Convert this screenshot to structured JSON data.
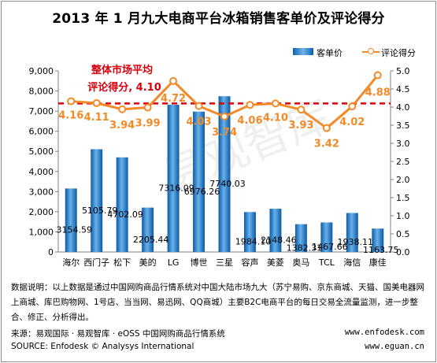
{
  "title": "2013 年 1 月九大电商平台冰箱销售客单价及评论得分",
  "legend": {
    "bar_label": "客单价",
    "line_label": "评论得分"
  },
  "average_annotation": {
    "line1": "整体市场平均",
    "line2": "评论得分, 4.10"
  },
  "watermark": "易观智库",
  "notes": "数据说明：以上数据是通过中国网购商品行情系统对中国大陆市场九大（苏宁易购、京东商城、天猫、国美电器网上商城、库巴购物网、1号店、当当网、易迅网、QQ商城）主要B2C电商平台的每日交易全流量监测，进一步整合、修正、分析得出。",
  "source_cn": "来源：易观国际 · 易观智库 · eOSS 中国网购商品行情系统",
  "source_en": "SOURCE: Enfodesk © Analysys International",
  "url1": "www.enfodesk.com",
  "url2": "www.eguan.cn",
  "colors": {
    "bar": "#2f86d6",
    "line": "#f28a27",
    "avg_line": "#d9000d",
    "score_text": "#f28a27",
    "avg_text": "#d9000d"
  },
  "chart_data": {
    "type": "bar",
    "title": "2013 年 1 月九大电商平台冰箱销售客单价及评论得分",
    "categories": [
      "海尔",
      "西门子",
      "松下",
      "美的",
      "LG",
      "博世",
      "三星",
      "容声",
      "美菱",
      "奥马",
      "TCL",
      "海信",
      "康佳"
    ],
    "series": [
      {
        "name": "客单价",
        "type": "bar",
        "axis": "left",
        "values": [
          3154.59,
          5105.79,
          4702.09,
          2205.44,
          7316.09,
          6976.26,
          7740.03,
          1984.1,
          2148.46,
          1382.31,
          1467.66,
          1938.11,
          1163.75
        ],
        "labels": [
          "3154.59",
          "5105.79",
          "4702.09",
          "2205.44",
          "7316.09",
          "6976.26",
          "7740.03",
          "1984.10",
          "2148.46",
          "1382.31",
          "1467.66",
          "1938.11",
          "1163.75"
        ]
      },
      {
        "name": "评论得分",
        "type": "line",
        "axis": "right",
        "values": [
          4.16,
          4.11,
          3.94,
          3.99,
          4.72,
          4.03,
          3.74,
          4.06,
          4.1,
          3.93,
          3.42,
          4.02,
          4.88
        ],
        "labels": [
          "4.16",
          "4.11",
          "3.94",
          "3.99",
          "4.72",
          "4.03",
          "3.74",
          "4.06",
          "4.10",
          "3.93",
          "3.42",
          "4.02",
          "4.88"
        ]
      }
    ],
    "reference_line": {
      "axis": "right",
      "value": 4.1
    },
    "y_left": {
      "range": [
        0,
        9000
      ],
      "ticks": [
        "0",
        "1,000",
        "2,000",
        "3,000",
        "4,000",
        "5,000",
        "6,000",
        "7,000",
        "8,000",
        "9,000"
      ]
    },
    "y_right": {
      "range": [
        0,
        5.0
      ],
      "ticks": [
        "0.0",
        "0.5",
        "1.0",
        "1.5",
        "2.0",
        "2.5",
        "3.0",
        "3.5",
        "4.0",
        "4.5",
        "5.0"
      ]
    },
    "grid": false,
    "legend_position": "top-right"
  }
}
